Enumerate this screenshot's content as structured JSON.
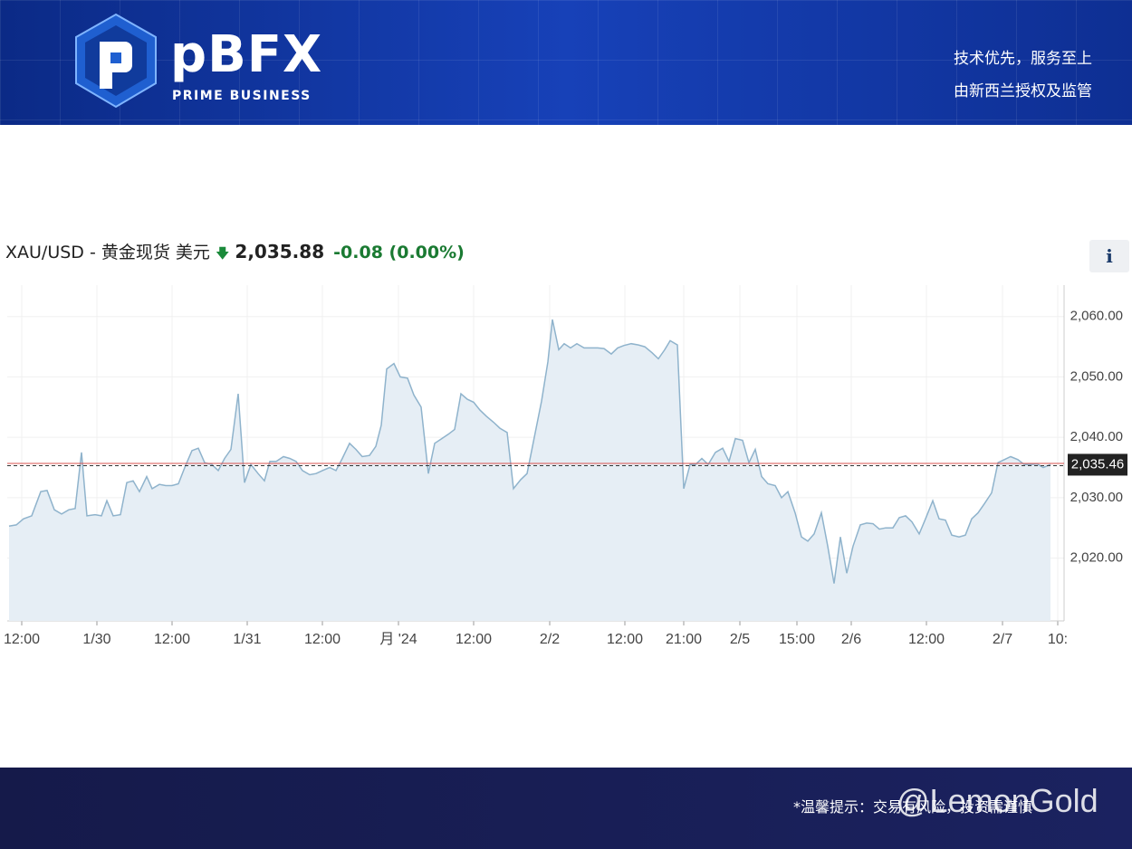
{
  "header": {
    "logo_text": "pBFX",
    "logo_subtext": "PRIME BUSINESS",
    "slogans": [
      "技术优先，服务至上",
      "由新西兰授权及监管"
    ]
  },
  "chart_data": {
    "type": "area",
    "title": "XAU/USD - 黄金现货 美元",
    "price": "2,035.88",
    "change": "-0.08 (0.00%)",
    "info_button": "i",
    "color": "#8fb3cc",
    "fill_color": "#e6eef5",
    "grid": true,
    "x": [
      -14,
      -6,
      2,
      11,
      21,
      28,
      36,
      44,
      52,
      59,
      66,
      72,
      81,
      88,
      94,
      101,
      109,
      116,
      123,
      130,
      138,
      144,
      152,
      159,
      166,
      173,
      180,
      188,
      195,
      202,
      210,
      217,
      224,
      231,
      239,
      246,
      253,
      261,
      268,
      274,
      281,
      289,
      296,
      303,
      310,
      318,
      325,
      332,
      340,
      347,
      354,
      362,
      369,
      376,
      384,
      391,
      397,
      403,
      411,
      418,
      426,
      433,
      441,
      449,
      456,
      464,
      471,
      478,
      485,
      492,
      499,
      506,
      513,
      521,
      528,
      536,
      543,
      551,
      558,
      566,
      574,
      581,
      586,
      593,
      599,
      606,
      613,
      621,
      628,
      636,
      643,
      651,
      658,
      665,
      673,
      681,
      688,
      696,
      703,
      710,
      716,
      724,
      731,
      738,
      744,
      751,
      758,
      766,
      774,
      781,
      788,
      796,
      803,
      810,
      817,
      824,
      832,
      839,
      846,
      854,
      861,
      868,
      875,
      883,
      890,
      897,
      904,
      911,
      918,
      926,
      933,
      940,
      947,
      954,
      962,
      969,
      976,
      983,
      991,
      998,
      1006,
      1013,
      1020,
      1027,
      1035,
      1042,
      1049,
      1056,
      1063,
      1071,
      1078,
      1085,
      1092,
      1100,
      1107,
      1114,
      1121,
      1128,
      1136
    ],
    "values": [
      2025.3,
      2025.5,
      2026.5,
      2027,
      2031,
      2031.2,
      2028,
      2027.3,
      2028,
      2028.2,
      2037.5,
      2027,
      2027.2,
      2027,
      2029.5,
      2027,
      2027.2,
      2032.5,
      2032.8,
      2031,
      2033.5,
      2031.5,
      2032.2,
      2032,
      2032,
      2032.3,
      2035,
      2037.8,
      2038.2,
      2035.8,
      2035.5,
      2034.5,
      2036.5,
      2038,
      2047.2,
      2032.5,
      2035.5,
      2034,
      2032.8,
      2036,
      2036,
      2036.8,
      2036.5,
      2036,
      2034.5,
      2033.8,
      2034,
      2034.5,
      2035,
      2034.5,
      2036.5,
      2039,
      2038,
      2036.8,
      2037,
      2038.5,
      2042,
      2051.3,
      2052.2,
      2050,
      2049.8,
      2047,
      2045,
      2034,
      2039,
      2039.8,
      2040.5,
      2041.3,
      2047.2,
      2046.3,
      2045.8,
      2044.5,
      2043.5,
      2042.5,
      2041.5,
      2040.8,
      2031.5,
      2033,
      2034,
      2040,
      2046,
      2052.5,
      2059.5,
      2054.5,
      2055.5,
      2054.8,
      2055.5,
      2054.8,
      2054.8,
      2054.8,
      2054.7,
      2053.8,
      2054.8,
      2055.2,
      2055.5,
      2055.3,
      2055,
      2054,
      2053,
      2054.5,
      2056,
      2055.3,
      2031.5,
      2035.5,
      2035.5,
      2036.5,
      2035.5,
      2037.5,
      2038.2,
      2036,
      2039.8,
      2039.5,
      2035.8,
      2038,
      2033.5,
      2032.3,
      2032,
      2030,
      2031,
      2027.5,
      2023.5,
      2022.8,
      2024,
      2027.5,
      2022,
      2015.8,
      2023.5,
      2017.5,
      2022,
      2025.5,
      2025.8,
      2025.7,
      2024.8,
      2025,
      2025,
      2026.7,
      2027,
      2026,
      2024,
      2026.5,
      2029.5,
      2026.5,
      2026.3,
      2023.8,
      2023.5,
      2023.8,
      2026.5,
      2027.5,
      2029,
      2030.8,
      2035.8,
      2036.3,
      2036.8,
      2036.3,
      2035.5,
      2035.5,
      2035.6,
      2035,
      2035.5
    ],
    "xlim": [
      -16,
      1151
    ],
    "xticks": [
      {
        "value": 0,
        "label": "12:00"
      },
      {
        "value": 83,
        "label": "1/30"
      },
      {
        "value": 166,
        "label": "12:00"
      },
      {
        "value": 249,
        "label": "1/31"
      },
      {
        "value": 332,
        "label": "12:00"
      },
      {
        "value": 416,
        "label": "月 '24"
      },
      {
        "value": 499,
        "label": "12:00"
      },
      {
        "value": 583,
        "label": "2/2"
      },
      {
        "value": 666,
        "label": "12:00"
      },
      {
        "value": 731,
        "label": "21:00"
      },
      {
        "value": 793,
        "label": "2/5"
      },
      {
        "value": 856,
        "label": "15:00"
      },
      {
        "value": 916,
        "label": "2/6"
      },
      {
        "value": 999,
        "label": "12:00"
      },
      {
        "value": 1083,
        "label": "2/7"
      },
      {
        "value": 1144,
        "label": "10:"
      }
    ],
    "ylim": [
      2009.6,
      2065.2
    ],
    "yticks": [
      {
        "value": 2020,
        "label": "2,020.00"
      },
      {
        "value": 2030,
        "label": "2,030.00"
      },
      {
        "value": 2040,
        "label": "2,040.00"
      },
      {
        "value": 2050,
        "label": "2,050.00"
      },
      {
        "value": 2060,
        "label": "2,060.00"
      }
    ],
    "reference_line": {
      "value": 2035.46,
      "label": "2,035.46",
      "color": "#d9534f"
    }
  },
  "footer": {
    "notice": "*温馨提示：交易有风险，投资需谨慎",
    "watermark": "@LemonGold"
  }
}
